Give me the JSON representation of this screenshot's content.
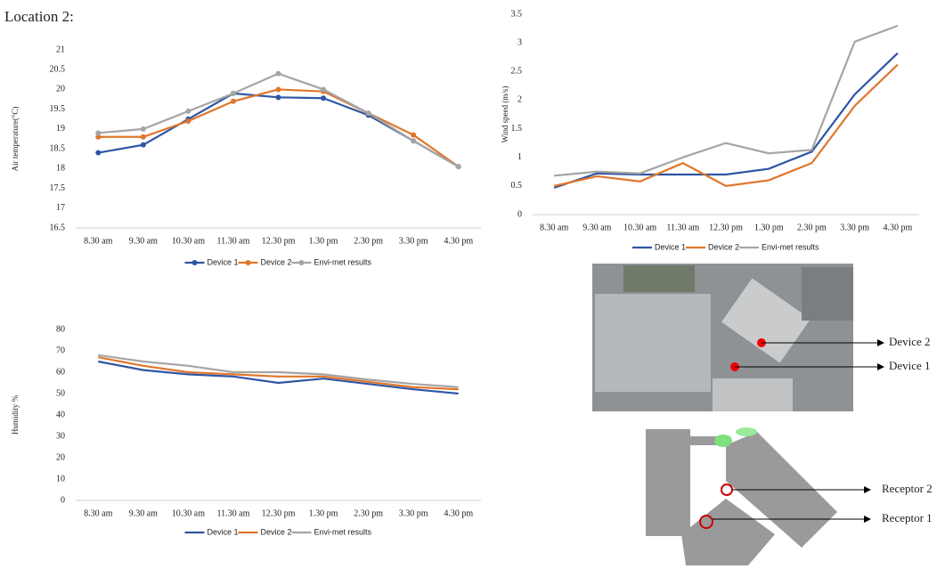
{
  "heading": "Location 2:",
  "annotations": [
    "Device 2",
    "Device 1",
    "Receptor 2",
    "Receptor 1"
  ],
  "chart_data": [
    {
      "type": "line",
      "ylabel": "Air temperature(°C)",
      "markers": true,
      "categories": [
        "8.30 am",
        "9.30 am",
        "10.30 am",
        "11.30 am",
        "12.30 pm",
        "1.30 pm",
        "2.30 pm",
        "3.30 pm",
        "4.30 pm"
      ],
      "ylim": [
        16.5,
        21
      ],
      "yticks": [
        16.5,
        17,
        17.5,
        18,
        18.5,
        19,
        19.5,
        20,
        20.5,
        21
      ],
      "series": [
        {
          "name": "Device 1",
          "color": "#2f55a4",
          "values": [
            18.4,
            18.6,
            19.25,
            19.9,
            19.8,
            19.78,
            19.35,
            18.7,
            18.05
          ]
        },
        {
          "name": "Device 2",
          "color": "#e0762b",
          "values": [
            18.8,
            18.8,
            19.2,
            19.7,
            20.0,
            19.95,
            19.4,
            18.85,
            18.05
          ]
        },
        {
          "name": "Envi-met results",
          "color": "#a5a5a5",
          "values": [
            18.9,
            19.0,
            19.45,
            19.9,
            20.4,
            20.0,
            19.4,
            18.7,
            18.05
          ]
        }
      ]
    },
    {
      "type": "line",
      "ylabel": "Wind speed (m/s)",
      "markers": false,
      "categories": [
        "8.30 am",
        "9.30 am",
        "10.30 am",
        "11.30 am",
        "12.30 pm",
        "1.30 pm",
        "2.30 pm",
        "3.30 pm",
        "4.30 pm"
      ],
      "ylim": [
        0,
        3.5
      ],
      "yticks": [
        0,
        0.5,
        1,
        1.5,
        2,
        2.5,
        3,
        3.5
      ],
      "series": [
        {
          "name": "Device 1",
          "color": "#2f55a4",
          "values": [
            0.47,
            0.72,
            0.7,
            0.7,
            0.7,
            0.8,
            1.1,
            2.1,
            2.82
          ]
        },
        {
          "name": "Device 2",
          "color": "#e0762b",
          "values": [
            0.5,
            0.67,
            0.58,
            0.9,
            0.5,
            0.6,
            0.9,
            1.9,
            2.62
          ]
        },
        {
          "name": "Envi-met results",
          "color": "#a5a5a5",
          "values": [
            0.68,
            0.75,
            0.72,
            1.0,
            1.25,
            1.07,
            1.13,
            3.02,
            3.3
          ]
        }
      ]
    },
    {
      "type": "line",
      "ylabel": "Humidity %",
      "markers": false,
      "categories": [
        "8.30 am",
        "9.30 am",
        "10.30 am",
        "11.30 am",
        "12.30 pm",
        "1.30 pm",
        "2.30 pm",
        "3.30 pm",
        "4.30 pm"
      ],
      "ylim": [
        0,
        80
      ],
      "yticks": [
        0,
        10,
        20,
        30,
        40,
        50,
        60,
        70,
        80
      ],
      "series": [
        {
          "name": "Device 1",
          "color": "#2f55a4",
          "values": [
            65,
            61,
            59,
            58,
            55,
            57,
            54.5,
            52,
            50
          ]
        },
        {
          "name": "Device 2",
          "color": "#e0762b",
          "values": [
            67,
            63,
            60,
            59,
            58,
            58,
            55.5,
            53,
            52
          ]
        },
        {
          "name": "Envi-met results",
          "color": "#a5a5a5",
          "values": [
            68,
            65,
            63,
            60,
            60,
            59,
            56.5,
            54.5,
            53
          ]
        }
      ]
    }
  ]
}
